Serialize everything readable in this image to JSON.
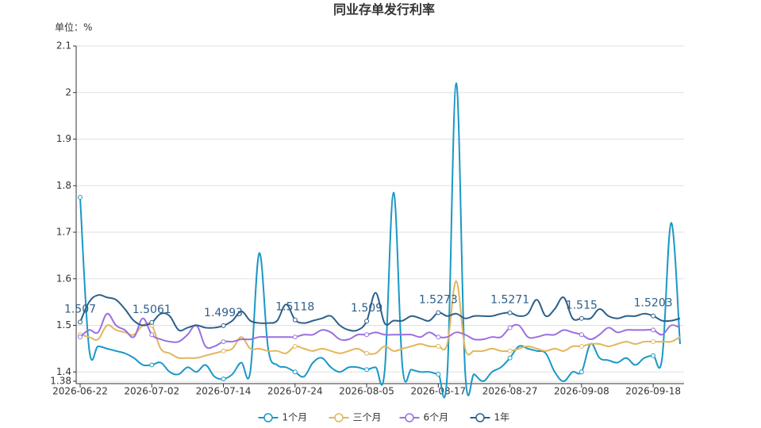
{
  "chart_data": {
    "type": "line",
    "title": "同业存单发行利率",
    "y_label": "单位：%",
    "categories": [
      "2026-06-22",
      null,
      null,
      null,
      null,
      null,
      null,
      null,
      "2026-07-02",
      null,
      null,
      null,
      null,
      null,
      null,
      null,
      "2026-07-14",
      null,
      null,
      null,
      null,
      null,
      null,
      null,
      "2026-07-24",
      null,
      null,
      null,
      null,
      null,
      null,
      null,
      "2026-08-05",
      null,
      null,
      null,
      null,
      null,
      null,
      null,
      "2026-08-17",
      null,
      null,
      null,
      null,
      null,
      null,
      null,
      "2026-08-27",
      null,
      null,
      null,
      null,
      null,
      null,
      null,
      "2026-09-08",
      null,
      null,
      null,
      null,
      null,
      null,
      null,
      "2026-09-18",
      null,
      null,
      null
    ],
    "ylim": [
      1.38,
      2.1
    ],
    "yticks": [
      1.38,
      1.4,
      1.5,
      1.6,
      1.7,
      1.8,
      1.9,
      2,
      2.1
    ],
    "grid": true,
    "legend": "bottom",
    "series": [
      {
        "name": "1个月",
        "color": "#1a98c6",
        "values": [
          1.775,
          1.45,
          1.455,
          1.45,
          1.445,
          1.44,
          1.43,
          1.415,
          1.415,
          1.42,
          1.4,
          1.395,
          1.41,
          1.4,
          1.415,
          1.39,
          1.385,
          1.395,
          1.42,
          1.4,
          1.655,
          1.45,
          1.415,
          1.41,
          1.4,
          1.39,
          1.42,
          1.43,
          1.41,
          1.4,
          1.41,
          1.41,
          1.405,
          1.41,
          1.4,
          1.785,
          1.41,
          1.405,
          1.4,
          1.4,
          1.395,
          1.395,
          2.02,
          1.4,
          1.395,
          1.38,
          1.4,
          1.41,
          1.43,
          1.455,
          1.45,
          1.445,
          1.44,
          1.4,
          1.38,
          1.4,
          1.4,
          1.46,
          1.43,
          1.425,
          1.42,
          1.43,
          1.415,
          1.43,
          1.435,
          1.43,
          1.72,
          1.46
        ]
      },
      {
        "name": "三个月",
        "color": "#e3b55c",
        "values": [
          1.48,
          1.475,
          1.47,
          1.5,
          1.49,
          1.485,
          1.48,
          1.5,
          1.5,
          1.45,
          1.44,
          1.43,
          1.43,
          1.43,
          1.435,
          1.44,
          1.445,
          1.45,
          1.475,
          1.45,
          1.45,
          1.445,
          1.445,
          1.44,
          1.455,
          1.45,
          1.445,
          1.45,
          1.445,
          1.44,
          1.445,
          1.45,
          1.44,
          1.44,
          1.455,
          1.445,
          1.45,
          1.455,
          1.46,
          1.455,
          1.455,
          1.46,
          1.595,
          1.45,
          1.445,
          1.445,
          1.45,
          1.445,
          1.445,
          1.45,
          1.455,
          1.45,
          1.445,
          1.45,
          1.445,
          1.455,
          1.455,
          1.46,
          1.46,
          1.455,
          1.46,
          1.465,
          1.46,
          1.465,
          1.465,
          1.465,
          1.465,
          1.475
        ]
      },
      {
        "name": "6个月",
        "color": "#9b6fe0",
        "values": [
          1.475,
          1.49,
          1.485,
          1.525,
          1.5,
          1.49,
          1.475,
          1.515,
          1.48,
          1.47,
          1.465,
          1.465,
          1.48,
          1.5,
          1.455,
          1.455,
          1.465,
          1.465,
          1.47,
          1.47,
          1.475,
          1.475,
          1.475,
          1.475,
          1.475,
          1.48,
          1.48,
          1.49,
          1.485,
          1.47,
          1.47,
          1.48,
          1.48,
          1.485,
          1.48,
          1.48,
          1.48,
          1.48,
          1.475,
          1.485,
          1.475,
          1.475,
          1.485,
          1.48,
          1.47,
          1.47,
          1.475,
          1.475,
          1.495,
          1.5,
          1.475,
          1.475,
          1.48,
          1.48,
          1.49,
          1.485,
          1.48,
          1.47,
          1.48,
          1.495,
          1.485,
          1.49,
          1.49,
          1.49,
          1.49,
          1.48,
          1.5,
          1.495
        ]
      },
      {
        "name": "1年",
        "color": "#2d5f8a",
        "data_labels": true,
        "values": [
          1.507,
          1.55,
          1.565,
          1.56,
          1.555,
          1.535,
          1.51,
          1.5,
          1.5061,
          1.525,
          1.52,
          1.49,
          1.495,
          1.5,
          1.495,
          1.495,
          1.4993,
          1.51,
          1.53,
          1.51,
          1.505,
          1.505,
          1.51,
          1.545,
          1.5118,
          1.505,
          1.51,
          1.515,
          1.52,
          1.5,
          1.49,
          1.49,
          1.509,
          1.57,
          1.505,
          1.51,
          1.51,
          1.52,
          1.515,
          1.51,
          1.5273,
          1.52,
          1.525,
          1.515,
          1.52,
          1.52,
          1.52,
          1.525,
          1.5271,
          1.52,
          1.525,
          1.555,
          1.52,
          1.535,
          1.56,
          1.515,
          1.515,
          1.515,
          1.535,
          1.52,
          1.515,
          1.52,
          1.52,
          1.525,
          1.5203,
          1.51,
          1.51,
          1.515
        ]
      }
    ]
  }
}
